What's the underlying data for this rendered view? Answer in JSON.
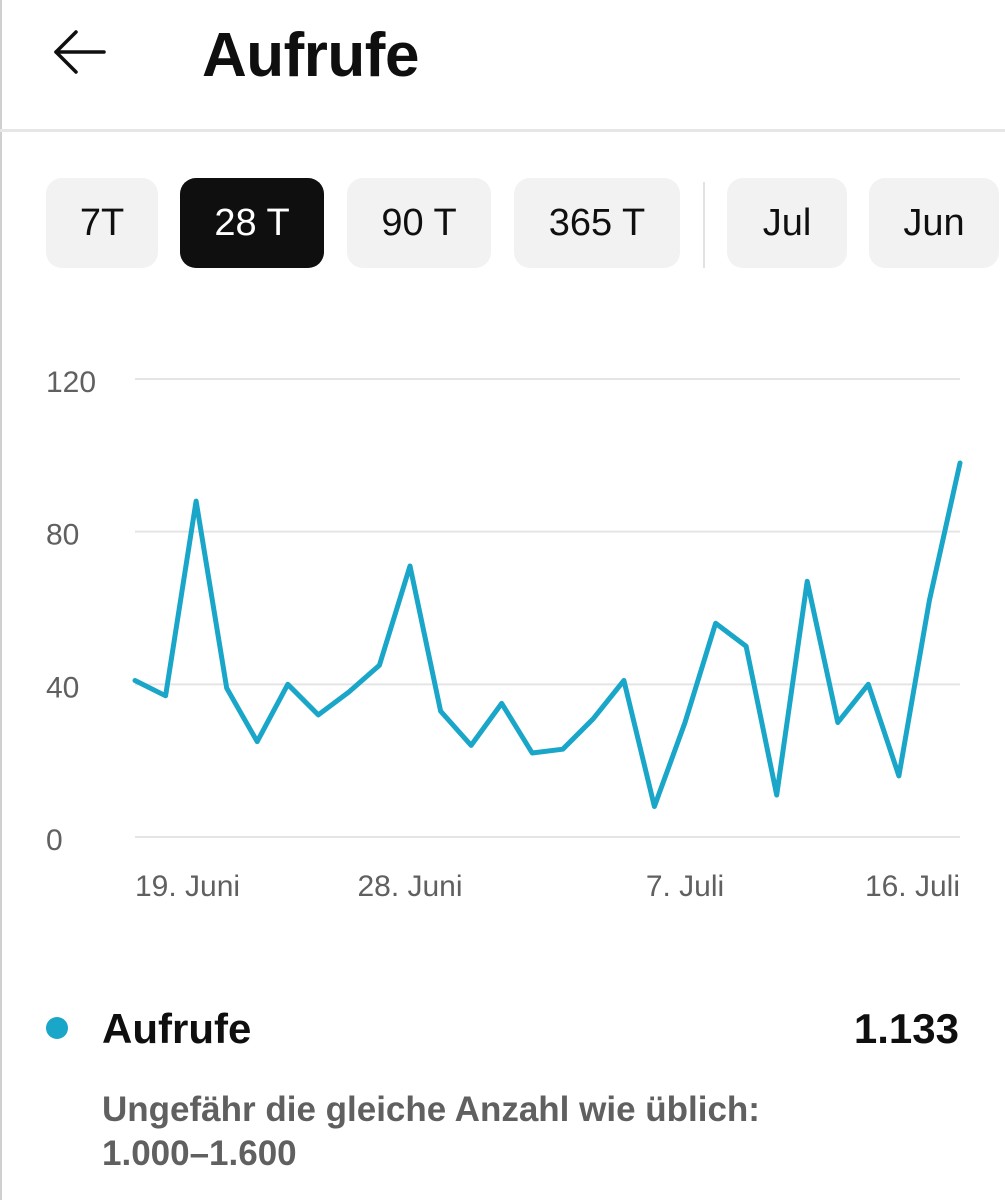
{
  "header": {
    "title": "Aufrufe",
    "back_icon": "arrow-left-icon"
  },
  "chips": [
    {
      "label": "7T",
      "selected": false
    },
    {
      "label": "28 T",
      "selected": true
    },
    {
      "label": "90 T",
      "selected": false
    },
    {
      "label": "365 T",
      "selected": false
    },
    {
      "label": "Jul",
      "selected": false
    },
    {
      "label": "Jun",
      "selected": false
    }
  ],
  "colors": {
    "accent": "#1aa6c9",
    "selected_chip": "#0f0f0f",
    "chip": "#f2f2f2",
    "grid": "#e5e5e5",
    "axis_text": "#606060"
  },
  "chart_data": {
    "type": "line",
    "title": "",
    "xlabel": "",
    "ylabel": "",
    "ylim": [
      0,
      120
    ],
    "yticks": [
      0,
      40,
      80,
      120
    ],
    "grid": true,
    "x": [
      "19. Juni",
      "20. Juni",
      "21. Juni",
      "22. Juni",
      "23. Juni",
      "24. Juni",
      "25. Juni",
      "26. Juni",
      "27. Juni",
      "28. Juni",
      "29. Juni",
      "30. Juni",
      "1. Juli",
      "2. Juli",
      "3. Juli",
      "4. Juli",
      "5. Juli",
      "6. Juli",
      "7. Juli",
      "8. Juli",
      "9. Juli",
      "10. Juli",
      "11. Juli",
      "12. Juli",
      "13. Juli",
      "14. Juli",
      "15. Juli",
      "16. Juli"
    ],
    "xtick_labels": [
      "19. Juni",
      "28. Juni",
      "7. Juli",
      "16. Juli"
    ],
    "series": [
      {
        "name": "Aufrufe",
        "values": [
          41,
          37,
          88,
          39,
          25,
          40,
          32,
          38,
          45,
          71,
          33,
          24,
          35,
          22,
          23,
          31,
          41,
          8,
          30,
          56,
          50,
          11,
          67,
          30,
          40,
          16,
          62,
          98
        ]
      }
    ]
  },
  "legend": {
    "label": "Aufrufe",
    "total": "1.133"
  },
  "summary": {
    "line1": "Ungefähr die gleiche Anzahl wie üblich:",
    "line2": "1.000–1.600"
  }
}
